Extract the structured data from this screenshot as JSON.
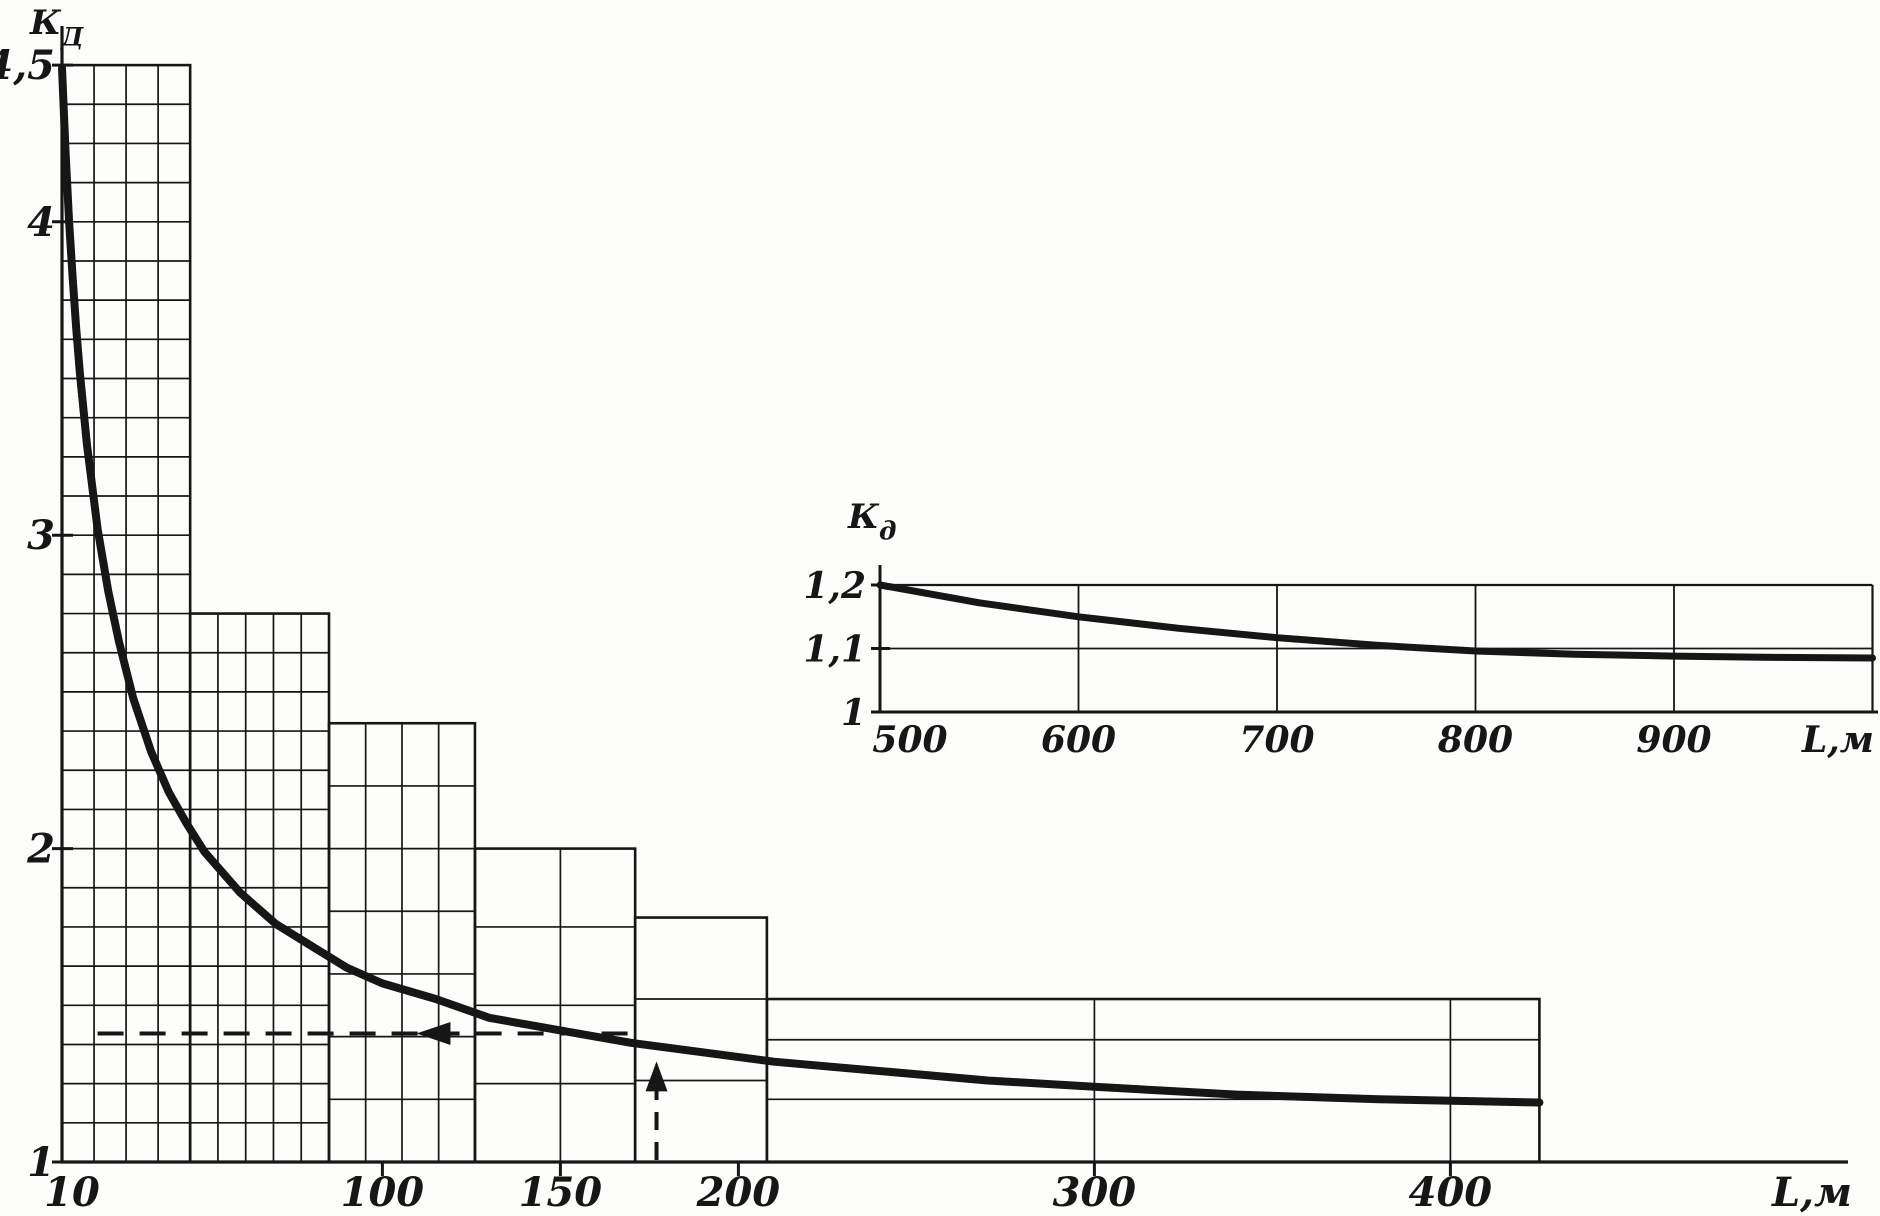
{
  "figure": {
    "ink": "#161616",
    "background": "#fdfdfb"
  },
  "chart_data": [
    {
      "id": "main",
      "type": "line",
      "xlabel": "L,м",
      "ylabel": {
        "base": "К",
        "sub": "Д"
      },
      "xlim": [
        10,
        430
      ],
      "ylim": [
        1,
        4.6
      ],
      "grid": "nested-blocks",
      "legend": "none",
      "x_ticks": [
        {
          "v": 10,
          "label": "10",
          "dx": 10
        },
        {
          "v": 100,
          "label": "100"
        },
        {
          "v": 150,
          "label": "150"
        },
        {
          "v": 200,
          "label": "200"
        },
        {
          "v": 300,
          "label": "300"
        },
        {
          "v": 400,
          "label": "400"
        }
      ],
      "y_ticks": [
        {
          "v": 1,
          "label": "1"
        },
        {
          "v": 2,
          "label": "2"
        },
        {
          "v": 3,
          "label": "3"
        },
        {
          "v": 4,
          "label": "4"
        },
        {
          "v": 4.5,
          "label": "4,5"
        }
      ],
      "series": [
        {
          "name": "Кд",
          "x": [
            10,
            11,
            12,
            13,
            14,
            15,
            17,
            20,
            23,
            26,
            30,
            35,
            40,
            45,
            50,
            60,
            70,
            80,
            90,
            100,
            115,
            130,
            150,
            170,
            190,
            210,
            240,
            270,
            300,
            340,
            380,
            425
          ],
          "y": [
            4.49,
            4.22,
            4.0,
            3.82,
            3.66,
            3.52,
            3.29,
            3.02,
            2.82,
            2.66,
            2.48,
            2.31,
            2.18,
            2.08,
            1.99,
            1.86,
            1.76,
            1.69,
            1.62,
            1.57,
            1.52,
            1.46,
            1.42,
            1.38,
            1.35,
            1.32,
            1.29,
            1.26,
            1.24,
            1.215,
            1.2,
            1.19
          ]
        }
      ],
      "grid_blocks": [
        {
          "l0": 10,
          "l1": 46,
          "k_top": 4.5,
          "v_lines": [
            19,
            28,
            37
          ],
          "h_step": 0.125
        },
        {
          "l0": 46,
          "l1": 85,
          "k_top": 2.75,
          "v_lines": [
            53.8,
            61.6,
            69.4,
            77.2
          ],
          "h_step": 0.125
        },
        {
          "l0": 85,
          "l1": 126,
          "k_top": 2.4,
          "v_lines": [
            95.3,
            105.5,
            115.8
          ],
          "h_lines": [
            1.2,
            1.4,
            1.6,
            1.8,
            2,
            2.2
          ]
        },
        {
          "l0": 126,
          "l1": 171,
          "k_top": 2,
          "v_lines": [
            150
          ],
          "h_lines": [
            1.25,
            1.5,
            1.75
          ]
        },
        {
          "l0": 171,
          "l1": 208,
          "k_top": 1.78,
          "v_lines": [],
          "h_lines": [
            1.26,
            1.52
          ]
        },
        {
          "l0": 208,
          "l1": 425,
          "k_top": 1.52,
          "v_lines": [
            300,
            400
          ],
          "h_lines": [
            1.2,
            1.39
          ]
        }
      ],
      "annotations": [
        {
          "kind": "dashed-arrow-left",
          "k": 1.41,
          "l_from": 170,
          "l_to": 20,
          "head_l": 118
        },
        {
          "kind": "dashed-arrow-up",
          "l": 177,
          "k_from": 1,
          "k_to": 1.27
        }
      ]
    },
    {
      "id": "inset",
      "type": "line",
      "xlabel": "L,м",
      "ylabel": {
        "base": "К",
        "sub": "д"
      },
      "xlim": [
        500,
        1000
      ],
      "ylim": [
        1,
        1.2
      ],
      "grid": "on",
      "legend": "none",
      "x_ticks": [
        {
          "v": 500,
          "label": "500",
          "dx": 30
        },
        {
          "v": 600,
          "label": "600"
        },
        {
          "v": 700,
          "label": "700"
        },
        {
          "v": 800,
          "label": "800"
        },
        {
          "v": 900,
          "label": "900"
        }
      ],
      "y_ticks": [
        {
          "v": 1,
          "label": "1"
        },
        {
          "v": 1.1,
          "label": "1,1"
        },
        {
          "v": 1.2,
          "label": "1,2"
        }
      ],
      "frame": {
        "l1": 1000,
        "k_top": 1.2
      },
      "v_grid": [
        600,
        700,
        800,
        900
      ],
      "h_grid": [
        1.1
      ],
      "series": [
        {
          "name": "Кд",
          "x": [
            500,
            550,
            600,
            650,
            700,
            750,
            800,
            850,
            900,
            950,
            1000
          ],
          "y": [
            1.2,
            1.172,
            1.15,
            1.132,
            1.117,
            1.105,
            1.096,
            1.091,
            1.088,
            1.086,
            1.085
          ]
        }
      ]
    }
  ]
}
